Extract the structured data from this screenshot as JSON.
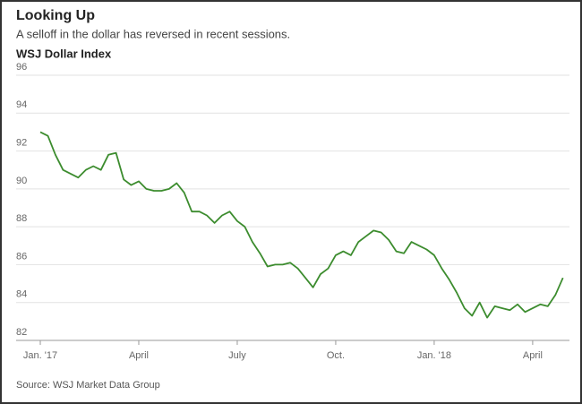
{
  "chart_data": {
    "type": "line",
    "title": "Looking Up",
    "subtitle": "A selloff in the dollar has reversed in recent sessions.",
    "y_label": "WSJ Dollar Index",
    "source": "Source: WSJ Market Data Group",
    "categories": [
      "Jan. '17",
      null,
      null,
      null,
      null,
      null,
      null,
      null,
      null,
      null,
      null,
      null,
      null,
      "April",
      null,
      null,
      null,
      null,
      null,
      null,
      null,
      null,
      null,
      null,
      null,
      null,
      "July",
      null,
      null,
      null,
      null,
      null,
      null,
      null,
      null,
      null,
      null,
      null,
      null,
      "Oct.",
      null,
      null,
      null,
      null,
      null,
      null,
      null,
      null,
      null,
      null,
      null,
      null,
      "Jan. '18",
      null,
      null,
      null,
      null,
      null,
      null,
      null,
      null,
      null,
      null,
      null,
      null,
      "April",
      null,
      null,
      null,
      null
    ],
    "series": [
      {
        "name": "WSJ Dollar Index",
        "color": "#3c8c2e",
        "values": [
          93.0,
          92.8,
          91.8,
          91.0,
          90.8,
          90.6,
          91.0,
          91.2,
          91.0,
          91.8,
          91.9,
          90.5,
          90.2,
          90.4,
          90.0,
          89.9,
          89.9,
          90.0,
          90.3,
          89.8,
          88.8,
          88.8,
          88.6,
          88.2,
          88.6,
          88.8,
          88.3,
          88.0,
          87.2,
          86.6,
          85.9,
          86.0,
          86.0,
          86.1,
          85.8,
          85.3,
          84.8,
          85.5,
          85.8,
          86.5,
          86.7,
          86.5,
          87.2,
          87.5,
          87.8,
          87.7,
          87.3,
          86.7,
          86.6,
          87.2,
          87.0,
          86.8,
          86.5,
          85.8,
          85.2,
          84.5,
          83.7,
          83.3,
          84.0,
          83.2,
          83.8,
          83.7,
          83.6,
          83.9,
          83.5,
          83.7,
          83.9,
          83.8,
          84.4,
          85.3
        ]
      }
    ],
    "ylim": [
      82,
      96
    ],
    "yticks": [
      82,
      84,
      86,
      88,
      90,
      92,
      94,
      96
    ],
    "grid": true
  }
}
